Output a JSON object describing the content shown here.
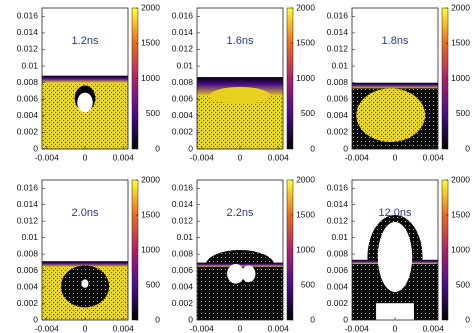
{
  "chart_data": [
    {
      "type": "heatmap",
      "annotation": "1.2ns",
      "xlim": [
        -0.0045,
        0.0045
      ],
      "ylim": [
        0,
        0.017
      ],
      "xticks": [
        -0.004,
        0,
        0.004
      ],
      "yticks": [
        0,
        0.002,
        0.004,
        0.006,
        0.008,
        0.01,
        0.012,
        0.014,
        0.016
      ],
      "colorbar": {
        "lim": [
          0,
          2000
        ],
        "ticks": [
          0,
          500,
          1000,
          1500,
          2000
        ]
      }
    },
    {
      "type": "heatmap",
      "annotation": "1.6ns",
      "xlim": [
        -0.0045,
        0.0045
      ],
      "ylim": [
        0,
        0.017
      ],
      "xticks": [
        -0.004,
        0,
        0.004
      ],
      "yticks": [
        0,
        0.002,
        0.004,
        0.006,
        0.008,
        0.01,
        0.012,
        0.014,
        0.016
      ],
      "colorbar": {
        "lim": [
          0,
          2000
        ],
        "ticks": [
          0,
          500,
          1000,
          1500,
          2000
        ]
      }
    },
    {
      "type": "heatmap",
      "annotation": "1.8ns",
      "xlim": [
        -0.0045,
        0.0045
      ],
      "ylim": [
        0,
        0.017
      ],
      "xticks": [
        -0.004,
        0,
        0.004
      ],
      "yticks": [
        0,
        0.002,
        0.004,
        0.006,
        0.008,
        0.01,
        0.012,
        0.014,
        0.016
      ],
      "colorbar": {
        "lim": [
          0,
          2000
        ],
        "ticks": [
          0,
          500,
          1000,
          1500,
          2000
        ]
      }
    },
    {
      "type": "heatmap",
      "annotation": "2.0ns",
      "xlim": [
        -0.0045,
        0.0045
      ],
      "ylim": [
        0,
        0.017
      ],
      "xticks": [
        -0.004,
        0,
        0.004
      ],
      "yticks": [
        0,
        0.002,
        0.004,
        0.006,
        0.008,
        0.01,
        0.012,
        0.014,
        0.016
      ],
      "colorbar": {
        "lim": [
          0,
          2000
        ],
        "ticks": [
          0,
          500,
          1000,
          1500,
          2000
        ]
      }
    },
    {
      "type": "heatmap",
      "annotation": "2.2ns",
      "xlim": [
        -0.0045,
        0.0045
      ],
      "ylim": [
        0,
        0.017
      ],
      "xticks": [
        -0.004,
        0,
        0.004
      ],
      "yticks": [
        0,
        0.002,
        0.004,
        0.006,
        0.008,
        0.01,
        0.012,
        0.014,
        0.016
      ],
      "colorbar": {
        "lim": [
          0,
          2000
        ],
        "ticks": [
          0,
          500,
          1000,
          1500,
          2000
        ]
      }
    },
    {
      "type": "heatmap",
      "annotation": "12.0ns",
      "xlim": [
        -0.0045,
        0.0045
      ],
      "ylim": [
        0,
        0.017
      ],
      "xticks": [
        -0.004,
        0,
        0.004
      ],
      "yticks": [
        0,
        0.002,
        0.004,
        0.006,
        0.008,
        0.01,
        0.012,
        0.014,
        0.016
      ],
      "colorbar": {
        "lim": [
          0,
          2000
        ],
        "ticks": [
          0,
          500,
          1000,
          1500,
          2000
        ]
      }
    }
  ]
}
